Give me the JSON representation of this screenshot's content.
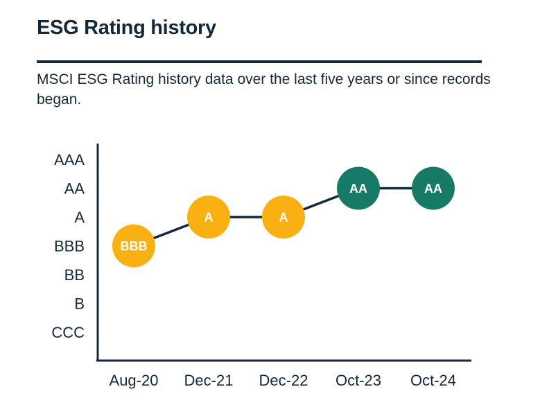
{
  "page": {
    "title": "ESG Rating history",
    "subtitle": "MSCI ESG Rating history data over the last five years or since records began."
  },
  "colors": {
    "text": "#15283A",
    "axis": "#15283A",
    "connector_line": "#15283A",
    "amber_marker": "#F9B013",
    "teal_marker": "#177A66",
    "marker_label": "#FFFFFF",
    "background": "#FFFFFF"
  },
  "chart_data": {
    "type": "line",
    "title": "ESG Rating history",
    "xlabel": "",
    "ylabel": "",
    "x": [
      "Aug-20",
      "Dec-21",
      "Dec-22",
      "Oct-23",
      "Oct-24"
    ],
    "y_ticks": [
      "AAA",
      "AA",
      "A",
      "BBB",
      "BB",
      "B",
      "CCC"
    ],
    "series": [
      {
        "name": "MSCI ESG Rating",
        "values": [
          "BBB",
          "A",
          "A",
          "AA",
          "AA"
        ],
        "point_colors": [
          "#F9B013",
          "#F9B013",
          "#F9B013",
          "#177A66",
          "#177A66"
        ]
      }
    ],
    "grid": false,
    "legend_position": "none",
    "marker_style": "labeled-circle",
    "axis_color": "#15283A",
    "line_color": "#15283A"
  }
}
